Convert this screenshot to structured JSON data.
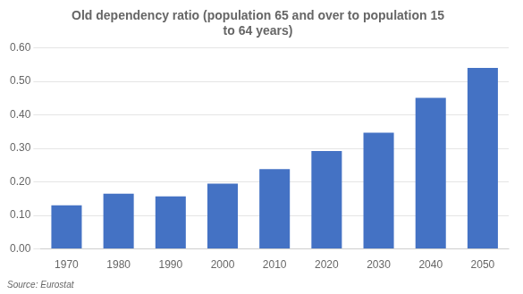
{
  "chart_data": {
    "type": "bar",
    "title": "Old dependency ratio (population 65 and over to population 15\nto 64 years)",
    "annotation": "Source: Eurostat",
    "categories": [
      "1970",
      "1980",
      "1990",
      "2000",
      "2010",
      "2020",
      "2030",
      "2040",
      "2050"
    ],
    "values": [
      0.13,
      0.165,
      0.157,
      0.195,
      0.238,
      0.292,
      0.347,
      0.451,
      0.54
    ],
    "color": "#4472C4",
    "ylim": [
      0.0,
      0.6
    ],
    "yticks": [
      {
        "value": 0.0,
        "label": "0.00"
      },
      {
        "value": 0.1,
        "label": "0.10"
      },
      {
        "value": 0.2,
        "label": "0.20"
      },
      {
        "value": 0.3,
        "label": "0.30"
      },
      {
        "value": 0.4,
        "label": "0.40"
      },
      {
        "value": 0.5,
        "label": "0.50"
      },
      {
        "value": 0.6,
        "label": "0.60"
      }
    ],
    "grid": true
  }
}
